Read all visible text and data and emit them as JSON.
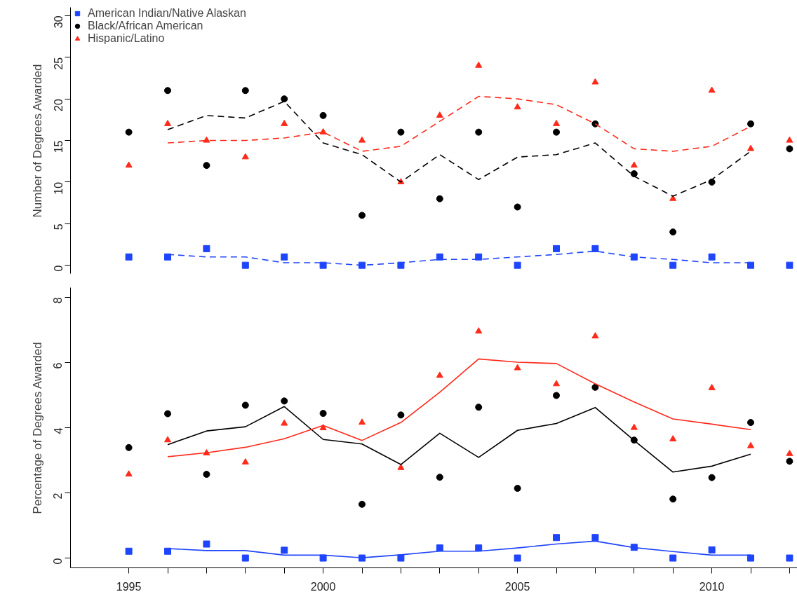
{
  "chart_data": [
    {
      "type": "scatter",
      "ylabel": "Number of Degrees Awarded",
      "ylim": [
        -1,
        31
      ],
      "yticks": [
        0,
        5,
        10,
        15,
        20,
        25,
        30
      ],
      "tick_labels": "y",
      "legend": "top left",
      "grid": false,
      "x": [
        1995,
        1996,
        1997,
        1998,
        1999,
        2000,
        2001,
        2002,
        2003,
        2004,
        2005,
        2006,
        2007,
        2008,
        2009,
        2010,
        2011,
        2012
      ],
      "series": [
        {
          "name": "American Indian/Native Alaskan",
          "color": "#1f45fc",
          "marker": "square",
          "values": [
            1,
            1,
            2,
            0,
            1,
            0,
            0,
            0,
            1,
            1,
            0,
            2,
            2,
            1,
            0,
            1,
            0,
            0
          ]
        },
        {
          "name": "Black/African American",
          "color": "#000000",
          "marker": "circle",
          "values": [
            16,
            21,
            12,
            21,
            20,
            18,
            6,
            16,
            8,
            16,
            7,
            16,
            17,
            11,
            4,
            10,
            17,
            14
          ]
        },
        {
          "name": "Hispanic/Latino",
          "color": "#ff2a1a",
          "marker": "triangle",
          "values": [
            12,
            17,
            15,
            13,
            17,
            16,
            15,
            10,
            18,
            24,
            19,
            17,
            22,
            12,
            8,
            21,
            14,
            15
          ]
        },
        {
          "type": "line",
          "color": "#1f45fc",
          "line_style": "dashed",
          "values": [
            null,
            1.3,
            1.0,
            1.0,
            0.3,
            0.3,
            0.0,
            0.3,
            0.7,
            0.7,
            1.0,
            1.3,
            1.7,
            1.0,
            0.7,
            0.3,
            0.3,
            null
          ]
        },
        {
          "type": "line",
          "color": "#000000",
          "line_style": "dashed",
          "values": [
            null,
            16.3,
            18.0,
            17.7,
            19.7,
            14.7,
            13.3,
            10.0,
            13.3,
            10.3,
            13.0,
            13.3,
            14.7,
            10.7,
            8.3,
            10.3,
            13.7,
            null
          ]
        },
        {
          "type": "line",
          "color": "#ff2a1a",
          "line_style": "dashed",
          "values": [
            null,
            14.7,
            15.0,
            15.0,
            15.3,
            16.0,
            13.7,
            14.3,
            17.3,
            20.3,
            20.0,
            19.3,
            17.0,
            14.0,
            13.7,
            14.3,
            16.7,
            null
          ]
        }
      ]
    },
    {
      "type": "scatter",
      "ylabel": "Percentage of Degrees Awarded",
      "xlim": [
        1993.5,
        2012.2
      ],
      "ylim": [
        -0.3,
        8.3
      ],
      "yticks": [
        0,
        2,
        4,
        6,
        8
      ],
      "grid": false,
      "xticks": [
        1995,
        {
          "value": 1996,
          "label": null
        },
        {
          "value": 1997,
          "label": null
        },
        {
          "value": 1998,
          "label": null
        },
        {
          "value": 1999,
          "label": null
        },
        2000,
        {
          "value": 2001,
          "label": null
        },
        {
          "value": 2002,
          "label": null
        },
        {
          "value": 2003,
          "label": null
        },
        {
          "value": 2004,
          "label": null
        },
        2005,
        {
          "value": 2006,
          "label": null
        },
        {
          "value": 2007,
          "label": null
        },
        {
          "value": 2008,
          "label": null
        },
        {
          "value": 2009,
          "label": null
        },
        2010,
        {
          "value": 2011,
          "label": null
        },
        {
          "value": 2012,
          "label": null
        }
      ],
      "x": [
        1995,
        1996,
        1997,
        1998,
        1999,
        2000,
        2001,
        2002,
        2003,
        2004,
        2005,
        2006,
        2007,
        2008,
        2009,
        2010,
        2011,
        2012
      ],
      "series": [
        {
          "color": "#1f45fc",
          "marker": "square",
          "values": [
            0.21,
            0.21,
            0.43,
            0,
            0.24,
            0,
            0,
            0,
            0.31,
            0.31,
            0,
            0.63,
            0.63,
            0.33,
            0,
            0.25,
            0,
            0
          ]
        },
        {
          "color": "#000000",
          "marker": "circle",
          "values": [
            3.39,
            4.43,
            2.57,
            4.69,
            4.82,
            4.44,
            1.65,
            4.39,
            2.48,
            4.63,
            2.14,
            4.99,
            5.24,
            3.62,
            1.81,
            2.47,
            4.16,
            2.97
          ]
        },
        {
          "color": "#ff2a1a",
          "marker": "triangle",
          "values": [
            2.57,
            3.62,
            3.22,
            2.94,
            4.13,
            3.99,
            4.16,
            2.77,
            5.6,
            6.96,
            5.83,
            5.34,
            6.81,
            4.0,
            3.65,
            5.22,
            3.44,
            3.2
          ]
        },
        {
          "type": "line",
          "color": "#1f45fc",
          "line_style": "solid",
          "x": [
            1996,
            1997,
            1998,
            1999,
            2000,
            2001,
            2002,
            2003,
            2004,
            2005,
            2006,
            2007,
            2008,
            2009,
            2010,
            2011
          ],
          "values": [
            0.29,
            0.23,
            0.23,
            0.09,
            0.09,
            0.01,
            0.1,
            0.21,
            0.21,
            0.31,
            0.43,
            0.52,
            0.32,
            0.2,
            0.09,
            0.09
          ]
        },
        {
          "type": "line",
          "color": "#000000",
          "line_style": "solid",
          "x": [
            1996,
            1997,
            1998,
            1999,
            2000,
            2001,
            2002,
            2003,
            2004,
            2005,
            2006,
            2007,
            2008,
            2009,
            2010,
            2011
          ],
          "values": [
            3.48,
            3.9,
            4.03,
            4.65,
            3.64,
            3.5,
            2.87,
            3.83,
            3.09,
            3.92,
            4.13,
            4.62,
            3.61,
            2.64,
            2.82,
            3.19
          ]
        },
        {
          "type": "line",
          "color": "#ff2a1a",
          "line_style": "solid",
          "x": [
            1996,
            1997,
            1998,
            1999,
            2000,
            2001,
            2002,
            2003,
            2004,
            2005,
            2006,
            2007,
            2008,
            2009,
            2010,
            2011
          ],
          "values": [
            3.11,
            3.23,
            3.4,
            3.66,
            4.07,
            3.61,
            4.16,
            5.09,
            6.11,
            6.01,
            5.97,
            5.35,
            4.79,
            4.27,
            4.11,
            3.94
          ]
        }
      ]
    }
  ]
}
